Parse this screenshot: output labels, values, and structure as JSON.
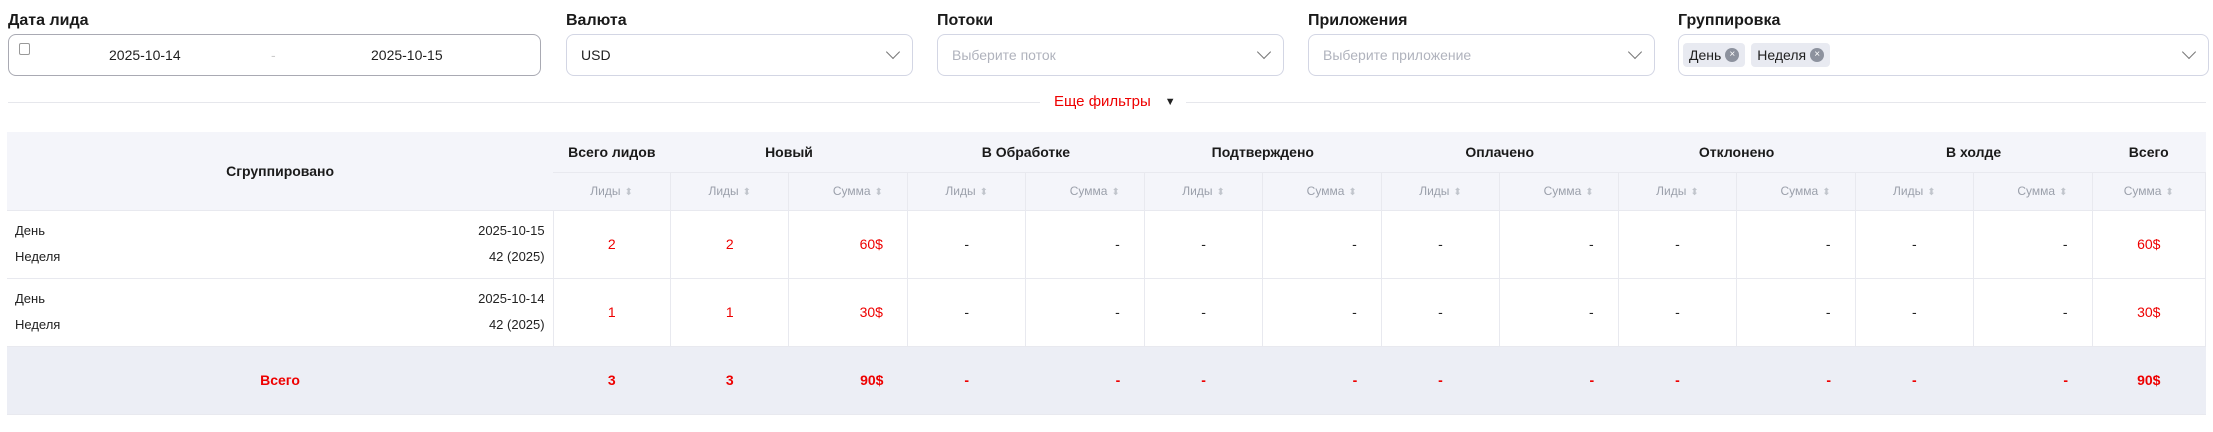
{
  "filters": {
    "date": {
      "label": "Дата лида",
      "from": "2025-10-14",
      "separator": "-",
      "to": "2025-10-15"
    },
    "currency": {
      "label": "Валюта",
      "value": "USD"
    },
    "streams": {
      "label": "Потоки",
      "placeholder": "Выберите поток"
    },
    "apps": {
      "label": "Приложения",
      "placeholder": "Выберите приложение"
    },
    "grouping": {
      "label": "Группировка",
      "tags": [
        "День",
        "Неделя"
      ]
    }
  },
  "more_filters": "Еще фильтры",
  "table": {
    "grouped_header": "Сгруппировано",
    "groups": [
      "Всего лидов",
      "Новый",
      "В Обработке",
      "Подтверждено",
      "Оплачено",
      "Отклонено",
      "В холде",
      "Всего"
    ],
    "sub": {
      "leads": "Лиды",
      "sum": "Сумма"
    },
    "rows": [
      {
        "l1": "День",
        "v1": "2025-10-15",
        "l2": "Неделя",
        "v2": "42 (2025)",
        "cells": [
          "2",
          "2",
          "60$",
          "-",
          "-",
          "-",
          "-",
          "-",
          "-",
          "-",
          "-",
          "-",
          "-",
          "60$"
        ]
      },
      {
        "l1": "День",
        "v1": "2025-10-14",
        "l2": "Неделя",
        "v2": "42 (2025)",
        "cells": [
          "1",
          "1",
          "30$",
          "-",
          "-",
          "-",
          "-",
          "-",
          "-",
          "-",
          "-",
          "-",
          "-",
          "30$"
        ]
      }
    ],
    "total": {
      "label": "Всего",
      "cells": [
        "3",
        "3",
        "90$",
        "-",
        "-",
        "-",
        "-",
        "-",
        "-",
        "-",
        "-",
        "-",
        "-",
        "90$"
      ]
    }
  },
  "colors": {
    "accent": "#ee0000",
    "header_bg": "#f4f5fa",
    "total_bg": "#eceef5"
  }
}
